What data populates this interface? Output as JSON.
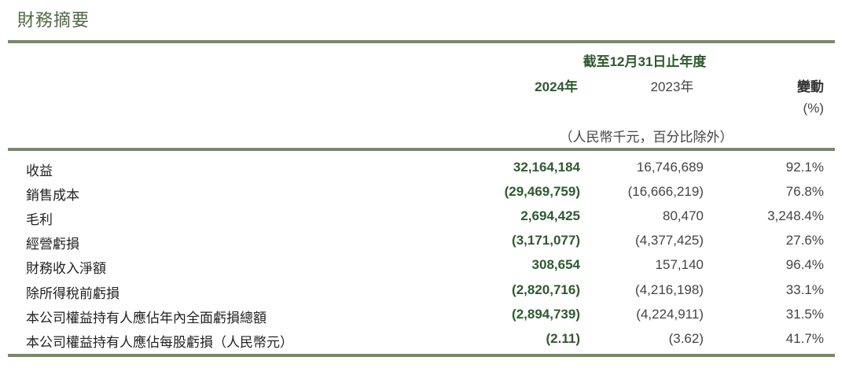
{
  "title": "財務摘要",
  "header": {
    "period": "截至12月31日止年度",
    "col_2024": "2024年",
    "col_2023": "2023年",
    "col_change": "變動",
    "col_change_unit": "(%)",
    "unit_note": "（人民幣千元，百分比除外）"
  },
  "rows": [
    {
      "label": "收益",
      "y2024": "32,164,184",
      "y2023": "16,746,689",
      "change": "92.1%"
    },
    {
      "label": "銷售成本",
      "y2024": "(29,469,759)",
      "y2023": "(16,666,219)",
      "change": "76.8%"
    },
    {
      "label": "毛利",
      "y2024": "2,694,425",
      "y2023": "80,470",
      "change": "3,248.4%"
    },
    {
      "label": "經營虧損",
      "y2024": "(3,171,077)",
      "y2023": "(4,377,425)",
      "change": "27.6%"
    },
    {
      "label": "財務收入淨額",
      "y2024": "308,654",
      "y2023": "157,140",
      "change": "96.4%"
    },
    {
      "label": "除所得稅前虧損",
      "y2024": "(2,820,716)",
      "y2023": "(4,216,198)",
      "change": "33.1%"
    },
    {
      "label": "本公司權益持有人應佔年內全面虧損總額",
      "y2024": "(2,894,739)",
      "y2023": "(4,224,911)",
      "change": "31.5%"
    },
    {
      "label": "本公司權益持有人應佔每股虧損（人民幣元）",
      "y2024": "(2.11)",
      "y2023": "(3.62)",
      "change": "41.7%"
    }
  ],
  "colors": {
    "accent": "#2e5a2e",
    "rule": "#768a68",
    "title": "#4f6a45"
  }
}
